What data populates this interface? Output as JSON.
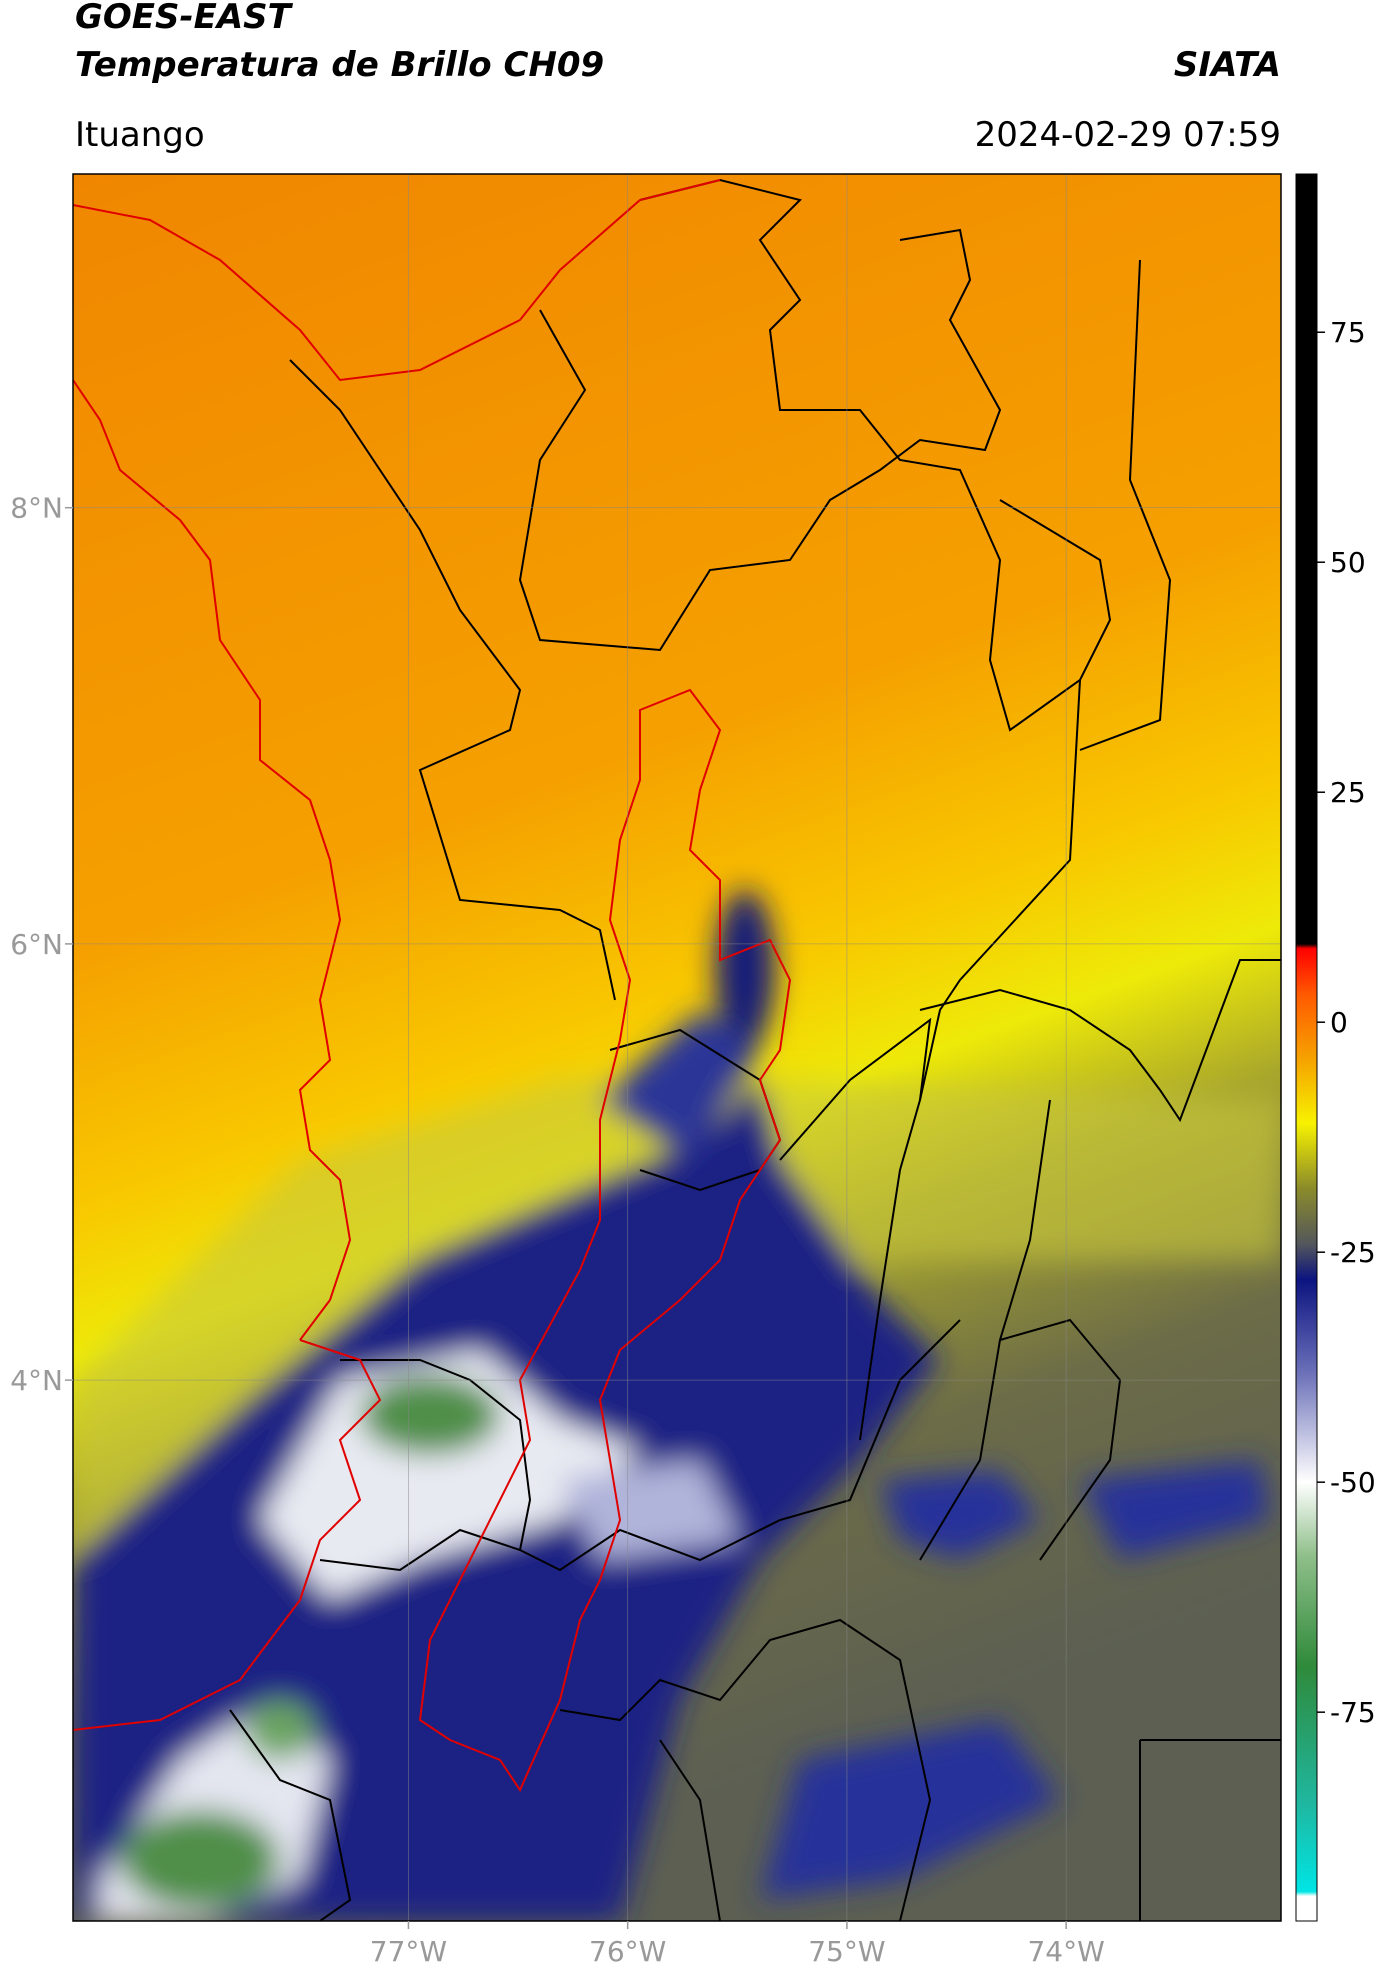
{
  "header": {
    "title": "GOES-EAST",
    "subtitle": "Temperatura de Brillo CH09",
    "agency": "SIATA",
    "location": "Ituango",
    "datetime": "2024-02-29 07:59"
  },
  "map": {
    "xlim": [
      -78.53,
      -73.02
    ],
    "ylim": [
      1.52,
      9.53
    ],
    "grid": true,
    "xticks": [
      {
        "value": -77,
        "label": "77°W"
      },
      {
        "value": -76,
        "label": "76°W"
      },
      {
        "value": -75,
        "label": "75°W"
      },
      {
        "value": -74,
        "label": "74°W"
      }
    ],
    "yticks": [
      {
        "value": 4,
        "label": "4°N"
      },
      {
        "value": 6,
        "label": "6°N"
      },
      {
        "value": 8,
        "label": "8°N"
      }
    ]
  },
  "colorbar": {
    "lim": [
      -97.7,
      92.2
    ],
    "ticks": [
      75,
      50,
      25,
      0,
      -25,
      -50,
      -75
    ],
    "stops": [
      {
        "value": -97.7,
        "color": "#ffffff"
      },
      {
        "value": -95,
        "color": "#ffffff"
      },
      {
        "value": -94.5,
        "color": "#00e5e5"
      },
      {
        "value": -85,
        "color": "#1fb7a0"
      },
      {
        "value": -70,
        "color": "#2f8a3a"
      },
      {
        "value": -58,
        "color": "#8fbf8a"
      },
      {
        "value": -50,
        "color": "#ffffff"
      },
      {
        "value": -38,
        "color": "#6a6fb8"
      },
      {
        "value": -28,
        "color": "#0c1480"
      },
      {
        "value": -24,
        "color": "#55585a"
      },
      {
        "value": -18,
        "color": "#8c8c2a"
      },
      {
        "value": -11,
        "color": "#f7f200"
      },
      {
        "value": -4,
        "color": "#f6a200"
      },
      {
        "value": 3,
        "color": "#ff5a00"
      },
      {
        "value": 8,
        "color": "#ff0000"
      },
      {
        "value": 8.5,
        "color": "#000000"
      },
      {
        "value": 92.2,
        "color": "#000000"
      }
    ]
  }
}
